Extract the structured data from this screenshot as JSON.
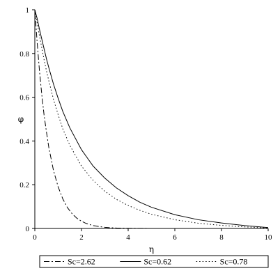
{
  "chart_data": {
    "type": "line",
    "title": "",
    "xlabel": "η",
    "ylabel": "φ",
    "xlim": [
      0,
      10
    ],
    "ylim": [
      0,
      1
    ],
    "x_ticks": [
      "0",
      "2",
      "4",
      "6",
      "8",
      "10"
    ],
    "y_ticks": [
      "0",
      "0.2",
      "0.4",
      "0.6",
      "0.8",
      "1"
    ],
    "grid": false,
    "legend_position": "bottom",
    "series": [
      {
        "name": "Sc=2.62",
        "style": "dash-dot",
        "color": "#000000",
        "x": [
          0,
          0.1,
          0.2,
          0.3,
          0.4,
          0.5,
          0.6,
          0.8,
          1.0,
          1.2,
          1.4,
          1.6,
          1.8,
          2.0,
          2.2,
          2.5,
          3.0,
          3.5,
          4.0,
          5.0,
          6.0,
          8.0,
          10.0
        ],
        "values": [
          1.0,
          0.85,
          0.72,
          0.61,
          0.515,
          0.44,
          0.37,
          0.265,
          0.19,
          0.135,
          0.095,
          0.067,
          0.047,
          0.033,
          0.023,
          0.013,
          0.005,
          0.002,
          0.001,
          0.0,
          0.0,
          0.0,
          0.0
        ]
      },
      {
        "name": "Sc=0.62",
        "style": "solid",
        "color": "#000000",
        "x": [
          0,
          0.1,
          0.2,
          0.3,
          0.4,
          0.5,
          0.6,
          0.8,
          1.0,
          1.2,
          1.5,
          2.0,
          2.5,
          3.0,
          3.5,
          4.0,
          4.5,
          5.0,
          6.0,
          7.0,
          8.0,
          9.0,
          10.0
        ],
        "values": [
          1.0,
          0.96,
          0.91,
          0.865,
          0.82,
          0.775,
          0.735,
          0.66,
          0.595,
          0.535,
          0.46,
          0.36,
          0.285,
          0.23,
          0.185,
          0.15,
          0.12,
          0.097,
          0.063,
          0.04,
          0.025,
          0.013,
          0.004
        ]
      },
      {
        "name": "Sc=0.78",
        "style": "dotted",
        "color": "#000000",
        "x": [
          0,
          0.1,
          0.2,
          0.3,
          0.4,
          0.5,
          0.6,
          0.8,
          1.0,
          1.2,
          1.5,
          2.0,
          2.5,
          3.0,
          3.5,
          4.0,
          4.5,
          5.0,
          6.0,
          7.0,
          8.0,
          9.0,
          10.0
        ],
        "values": [
          1.0,
          0.94,
          0.88,
          0.825,
          0.77,
          0.72,
          0.675,
          0.59,
          0.52,
          0.455,
          0.38,
          0.285,
          0.22,
          0.17,
          0.133,
          0.105,
          0.083,
          0.065,
          0.04,
          0.024,
          0.014,
          0.007,
          0.002
        ]
      }
    ]
  }
}
